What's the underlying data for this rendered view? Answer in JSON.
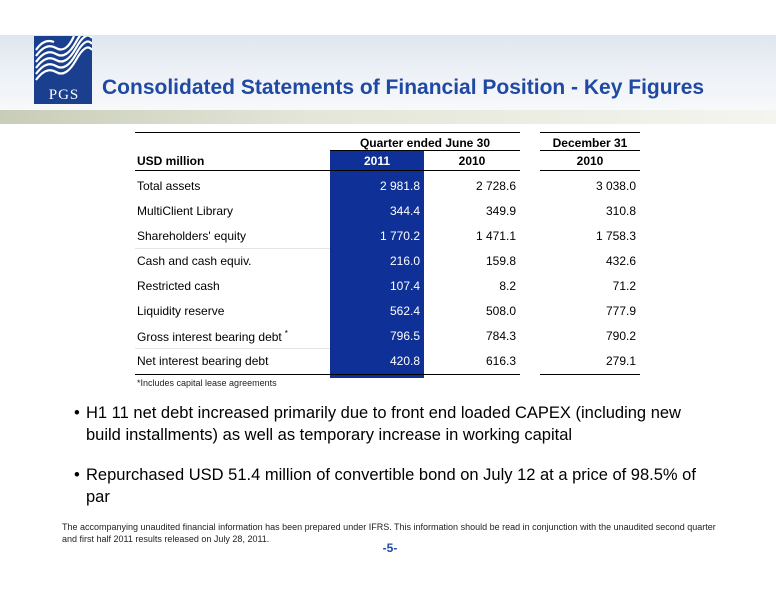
{
  "logo": {
    "text": "PGS"
  },
  "title": "Consolidated Statements of Financial Position - Key Figures",
  "table": {
    "group_header_quarter": "Quarter ended June 30",
    "group_header_year": "December 31",
    "unit_label": "USD million",
    "columns": [
      "2011",
      "2010",
      "2010"
    ],
    "rows": [
      {
        "label": "Total assets",
        "marker": "",
        "values": [
          "2 981.8",
          "2 728.6",
          "3 038.0"
        ]
      },
      {
        "label": "MultiClient Library",
        "marker": "",
        "values": [
          "344.4",
          "349.9",
          "310.8"
        ]
      },
      {
        "label": "Shareholders' equity",
        "marker": "",
        "values": [
          "1 770.2",
          "1 471.1",
          "1 758.3"
        ]
      },
      {
        "label": "Cash and cash equiv.",
        "marker": "",
        "values": [
          "216.0",
          "159.8",
          "432.6"
        ]
      },
      {
        "label": "Restricted cash",
        "marker": "",
        "values": [
          "107.4",
          "8.2",
          "71.2"
        ]
      },
      {
        "label": "Liquidity reserve",
        "marker": "",
        "values": [
          "562.4",
          "508.0",
          "777.9"
        ]
      },
      {
        "label": "Gross interest bearing debt",
        "marker": "*",
        "values": [
          "796.5",
          "784.3",
          "790.2"
        ]
      },
      {
        "label": "Net interest bearing debt",
        "marker": "",
        "values": [
          "420.8",
          "616.3",
          "279.1"
        ]
      }
    ],
    "footnote": "*Includes capital lease agreements"
  },
  "bullets": [
    {
      "dot": "•",
      "text": "H1 11 net debt increased primarily due to front end loaded CAPEX (including new build installments) as well as temporary increase in working capital"
    },
    {
      "dot": "•",
      "text": "Repurchased USD 51.4 million of convertible bond on July 12 at a price of 98.5% of par"
    }
  ],
  "disclaimer": "The accompanying unaudited financial information has been prepared under IFRS. This information should be read in conjunction with the unaudited second quarter and first half 2011 results released on July 28, 2011.",
  "page_number": "-5-",
  "colors": {
    "title": "#1f49a3",
    "highlight_column": "#0f3197",
    "logo": "#1a3f8f"
  }
}
